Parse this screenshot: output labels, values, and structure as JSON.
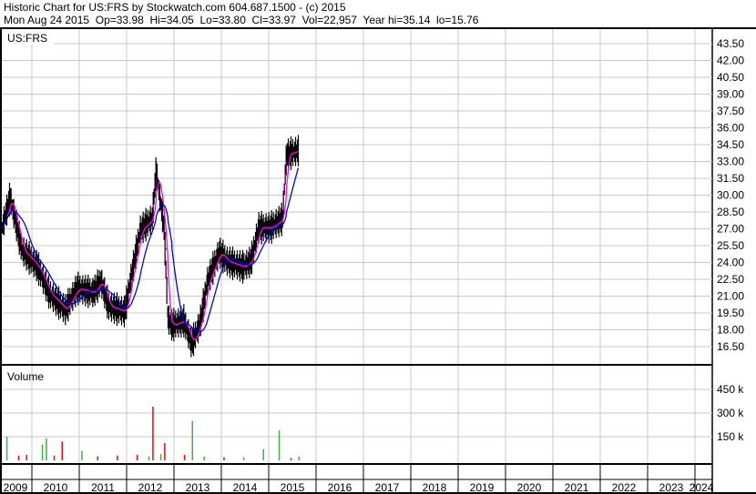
{
  "header": {
    "title": "Historic Chart for US:FRS by Stockwatch.com 604.687.1500 - (c) 2015",
    "quote": "Mon Aug 24 2015  Op=33.98  Hi=34.05  Lo=33.80  Cl=33.97  Vol=22,957  Year hi=35.14  lo=15.76"
  },
  "chart_data": [
    {
      "type": "line",
      "title": "US:FRS",
      "y_ticks": [
        "43.50",
        "42.00",
        "40.50",
        "39.00",
        "37.50",
        "36.00",
        "34.50",
        "33.00",
        "31.50",
        "30.00",
        "28.50",
        "27.00",
        "25.50",
        "24.00",
        "22.50",
        "21.00",
        "19.50",
        "18.00",
        "16.50"
      ],
      "ylim": [
        15.5,
        44.5
      ],
      "grid": true,
      "series_colors": {
        "price": "#000000",
        "short_ma": "#ff00ff",
        "long_ma": "#0000ff",
        "close_marks": "#ff0000"
      },
      "points": [
        [
          "2009-05",
          27.1
        ],
        [
          "2009-07",
          29.8
        ],
        [
          "2009-10",
          25.1
        ],
        [
          "2010-02",
          23.6
        ],
        [
          "2010-05",
          21.2
        ],
        [
          "2010-09",
          19.8
        ],
        [
          "2010-12",
          21.7
        ],
        [
          "2011-04",
          21.3
        ],
        [
          "2011-06",
          22.3
        ],
        [
          "2011-08",
          20.1
        ],
        [
          "2011-12",
          19.6
        ],
        [
          "2012-02",
          23.3
        ],
        [
          "2012-04",
          26.9
        ],
        [
          "2012-07",
          27.9
        ],
        [
          "2012-08",
          32.2
        ],
        [
          "2012-10",
          27.1
        ],
        [
          "2012-11",
          19.0
        ],
        [
          "2012-12",
          18.4
        ],
        [
          "2013-03",
          18.8
        ],
        [
          "2013-05",
          16.8
        ],
        [
          "2013-07",
          18.4
        ],
        [
          "2013-09",
          22.3
        ],
        [
          "2013-12",
          24.9
        ],
        [
          "2014-02",
          24.1
        ],
        [
          "2014-06",
          23.6
        ],
        [
          "2014-08",
          24.1
        ],
        [
          "2014-10",
          27.1
        ],
        [
          "2015-01",
          27.1
        ],
        [
          "2015-04",
          27.9
        ],
        [
          "2015-05",
          33.6
        ],
        [
          "2015-08",
          33.97
        ]
      ]
    },
    {
      "type": "bar",
      "title": "Volume",
      "y_ticks": [
        "450 k",
        "300 k",
        "150 k"
      ],
      "ylim": [
        0,
        600000
      ],
      "colors": {
        "up": "#3cb43c",
        "down": "#ff0000"
      },
      "bars": [
        [
          "2009-06",
          150000,
          "up"
        ],
        [
          "2009-09",
          30000,
          "down"
        ],
        [
          "2009-11",
          35000,
          "down"
        ],
        [
          "2010-03",
          100000,
          "up"
        ],
        [
          "2010-04",
          140000,
          "up"
        ],
        [
          "2010-08",
          120000,
          "down"
        ],
        [
          "2010-06",
          30000,
          "down"
        ],
        [
          "2011-01",
          60000,
          "up"
        ],
        [
          "2011-05",
          25000,
          "down"
        ],
        [
          "2011-10",
          30000,
          "down"
        ],
        [
          "2012-03",
          35000,
          "down"
        ],
        [
          "2012-06",
          25000,
          "up"
        ],
        [
          "2012-07",
          340000,
          "down"
        ],
        [
          "2012-10",
          110000,
          "down"
        ],
        [
          "2012-09",
          40000,
          "up"
        ],
        [
          "2013-03",
          35000,
          "down"
        ],
        [
          "2013-05",
          250000,
          "up"
        ],
        [
          "2013-08",
          25000,
          "up"
        ],
        [
          "2014-01",
          20000,
          "down"
        ],
        [
          "2014-06",
          20000,
          "up"
        ],
        [
          "2014-11",
          70000,
          "up"
        ],
        [
          "2015-03",
          190000,
          "up"
        ],
        [
          "2015-06",
          15000,
          "down"
        ],
        [
          "2015-08",
          22957,
          "up"
        ]
      ]
    }
  ],
  "x_axis": {
    "years": [
      "2009",
      "2010",
      "2011",
      "2012",
      "2013",
      "2014",
      "2015",
      "2016",
      "2017",
      "2018",
      "2019",
      "2020",
      "2021",
      "2022",
      "2023",
      "2024"
    ]
  }
}
